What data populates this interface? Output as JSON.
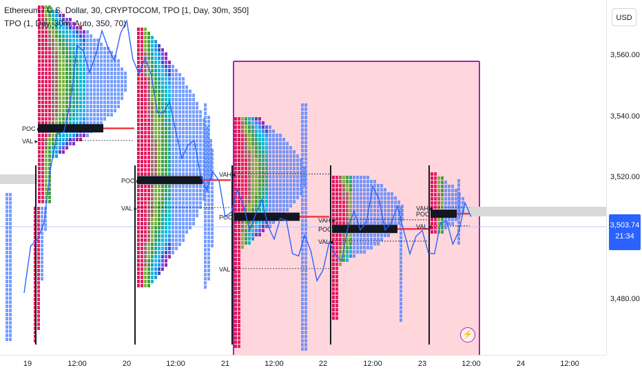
{
  "header": {
    "symbol_line": "Ethereum / U.S. Dollar, 30, CRYPTOCOM, TPO [1, Day, 30m, 350]",
    "indicator_line": "TPO (1, Day, 30m, Auto, 350, 70)"
  },
  "price_axis": {
    "currency": "USD",
    "ticks": [
      "3,560.00",
      "3,540.00",
      "3,520.00",
      "3,480.00"
    ],
    "last_price": "3,503.74",
    "countdown": "21:34"
  },
  "time_axis": {
    "ticks": [
      "19",
      "12:00",
      "20",
      "12:00",
      "21",
      "12:00",
      "22",
      "12:00",
      "23",
      "12:00",
      "24",
      "12:00"
    ]
  },
  "levels": {
    "poc": "POC",
    "val": "VAL",
    "vah": "VAH"
  },
  "colors": {
    "session_highlight": "#ffd6dc",
    "session_border": "#9c27b0",
    "poc_bar": "#131722",
    "poc_line": "#f23645",
    "price_line": "#2962ff",
    "last_price_bg": "#2962ff"
  },
  "chart_data": {
    "type": "line",
    "title": "Ethereum / U.S. Dollar, 30, CRYPTOCOM",
    "ylim": [
      3470,
      3575
    ],
    "x": [
      "19",
      "19 12:00",
      "20",
      "20 12:00",
      "21",
      "21 12:00",
      "22",
      "22 12:00",
      "23",
      "23 12:00"
    ],
    "series": [
      {
        "name": "Ethereum / U.S. Dollar",
        "values": [
          3482,
          3558,
          3566,
          3535,
          3512,
          3505,
          3490,
          3512,
          3497,
          3507
        ]
      }
    ],
    "profiles": [
      {
        "session": "19",
        "poc": 3536,
        "val": 3532
      },
      {
        "session": "20",
        "poc": 3519,
        "val": 3510
      },
      {
        "session": "21",
        "poc": 3507,
        "val": 3490,
        "vah": 3521
      },
      {
        "session": "22",
        "poc": 3503,
        "val": 3499,
        "vah": 3506
      },
      {
        "session": "23",
        "poc": 3508,
        "val": 3504,
        "vah": 3510
      }
    ],
    "last_price": 3503.74
  }
}
